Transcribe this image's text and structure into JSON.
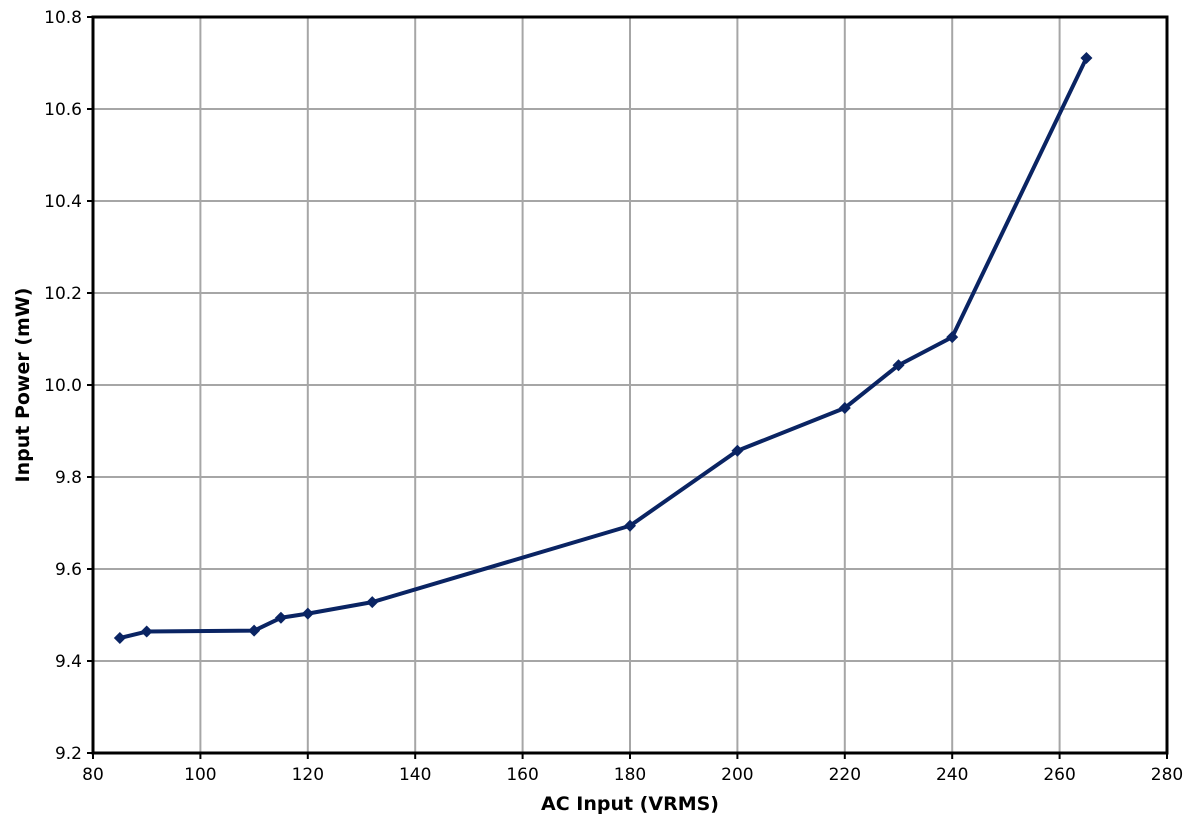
{
  "chart_data": {
    "type": "line",
    "xlabel": "AC Input (VRMS)",
    "ylabel": "Input Power (mW)",
    "xlim": [
      80,
      280
    ],
    "ylim": [
      9.2,
      10.8
    ],
    "xticks": [
      "80",
      "100",
      "120",
      "140",
      "160",
      "180",
      "200",
      "220",
      "240",
      "260",
      "280"
    ],
    "yticks": [
      "9.2",
      "9.4",
      "9.6",
      "9.8",
      "10.0",
      "10.2",
      "10.4",
      "10.6",
      "10.8"
    ],
    "grid": true,
    "legend": "none",
    "series": [
      {
        "color": "#0a2463",
        "marker": "diamond",
        "x": [
          85,
          90,
          110,
          115,
          120,
          132,
          180,
          200,
          220,
          230,
          240,
          265
        ],
        "y": [
          9.45,
          9.464,
          9.466,
          9.494,
          9.503,
          9.528,
          9.694,
          9.857,
          9.95,
          10.043,
          10.104,
          10.711
        ]
      }
    ]
  }
}
